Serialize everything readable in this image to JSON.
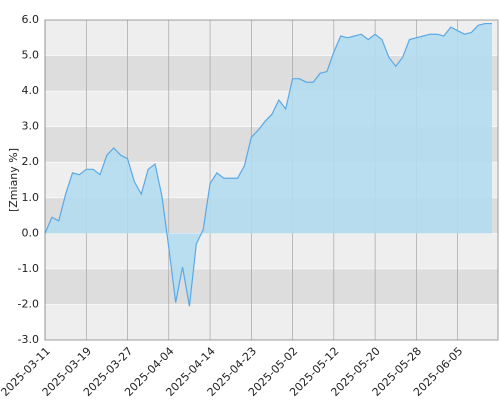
{
  "chart_data": {
    "type": "area",
    "y_label": "[Zmiany %]",
    "categories": [
      "2025-03-11",
      null,
      null,
      null,
      null,
      null,
      "2025-03-19",
      null,
      null,
      null,
      null,
      null,
      "2025-03-27",
      null,
      null,
      null,
      null,
      null,
      "2025-04-04",
      null,
      null,
      null,
      null,
      null,
      "2025-04-14",
      null,
      null,
      null,
      null,
      null,
      "2025-04-23",
      null,
      null,
      null,
      null,
      null,
      "2025-05-02",
      null,
      null,
      null,
      null,
      null,
      "2025-05-12",
      null,
      null,
      null,
      null,
      null,
      "2025-05-20",
      null,
      null,
      null,
      null,
      null,
      "2025-05-28",
      null,
      null,
      null,
      null,
      null,
      "2025-06-05",
      null,
      null,
      null,
      null,
      null
    ],
    "values": [
      0.0,
      0.45,
      0.35,
      1.1,
      1.7,
      1.65,
      1.8,
      1.8,
      1.65,
      2.2,
      2.4,
      2.2,
      2.1,
      1.45,
      1.1,
      1.8,
      1.95,
      1.05,
      -0.4,
      -1.95,
      -0.95,
      -2.05,
      -0.3,
      0.1,
      1.4,
      1.7,
      1.55,
      1.55,
      1.55,
      1.9,
      2.7,
      2.9,
      3.15,
      3.35,
      3.75,
      3.5,
      4.35,
      4.35,
      4.25,
      4.25,
      4.5,
      4.55,
      5.1,
      5.55,
      5.5,
      5.55,
      5.6,
      5.45,
      5.6,
      5.45,
      4.95,
      4.7,
      4.95,
      5.45,
      5.5,
      5.55,
      5.6,
      5.6,
      5.55,
      5.8,
      5.7,
      5.6,
      5.65,
      5.85,
      5.9,
      5.9
    ],
    "color": "#5aa9e6",
    "fill_color": "#b3dcee",
    "ylim": [
      -3,
      6
    ],
    "yticks": [
      {
        "value": -3,
        "label": "-3.0"
      },
      {
        "value": -2,
        "label": "-2.0"
      },
      {
        "value": -1,
        "label": "-1.0"
      },
      {
        "value": 0,
        "label": "0.0"
      },
      {
        "value": 1,
        "label": "1.0"
      },
      {
        "value": 2,
        "label": "2.0"
      },
      {
        "value": 3,
        "label": "3.0"
      },
      {
        "value": 4,
        "label": "4.0"
      },
      {
        "value": 5,
        "label": "5.0"
      },
      {
        "value": 6,
        "label": "6.0"
      }
    ],
    "grid": true
  }
}
